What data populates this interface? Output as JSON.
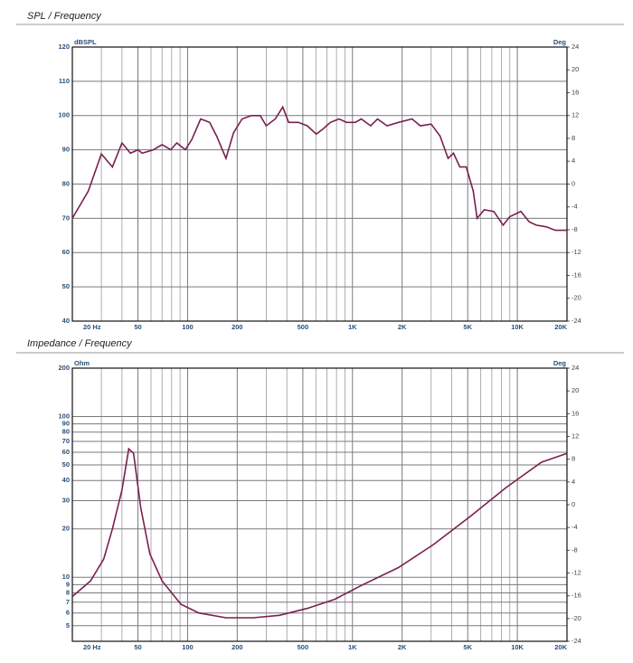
{
  "chart_data": [
    {
      "type": "line",
      "title": "SPL / Frequency",
      "ylabel": "dBSPL",
      "y2label": "Deg",
      "xscale": "log",
      "yscale": "linear",
      "grid": true,
      "color": "#7a1f4f",
      "xlim": [
        20,
        20000
      ],
      "xticks": [
        {
          "value": 20,
          "label": "20 Hz"
        },
        50,
        100,
        200,
        500,
        {
          "value": 1000,
          "label": "1K"
        },
        {
          "value": 2000,
          "label": "2K"
        },
        {
          "value": 5000,
          "label": "5K"
        },
        {
          "value": 10000,
          "label": "10K"
        },
        {
          "value": 20000,
          "label": "20K"
        }
      ],
      "xgrid": [
        30,
        40,
        60,
        70,
        80,
        90,
        300,
        400,
        600,
        700,
        800,
        900,
        3000,
        4000,
        6000,
        7000,
        8000,
        9000
      ],
      "ylim": [
        40,
        120
      ],
      "yticks": [
        40,
        50,
        60,
        70,
        80,
        90,
        100,
        110,
        120
      ],
      "y2lim": [
        -24,
        24
      ],
      "y2ticks": [
        -24,
        -20,
        -16,
        -12,
        -8,
        -4,
        0,
        4,
        8,
        12,
        16,
        20,
        24
      ],
      "x": [
        20,
        25,
        30,
        35,
        40,
        45,
        50,
        53,
        62,
        70,
        79,
        86,
        97,
        106,
        120,
        136,
        150,
        171,
        190,
        214,
        244,
        276,
        300,
        340,
        378,
        410,
        470,
        532,
        603,
        660,
        735,
        830,
        920,
        1040,
        1130,
        1290,
        1420,
        1620,
        1900,
        2300,
        2580,
        3000,
        3400,
        3800,
        4100,
        4480,
        4900,
        5400,
        5700,
        6300,
        7200,
        8200,
        9000,
        10500,
        11800,
        13000,
        15000,
        17000,
        20000
      ],
      "values": [
        70,
        78,
        88.8,
        85,
        92,
        89,
        90,
        89,
        90,
        91.5,
        90,
        92,
        90,
        93,
        99,
        98,
        94,
        87.5,
        95,
        99,
        100,
        100,
        97,
        99,
        102.5,
        98,
        98,
        97,
        94.6,
        96,
        98,
        99,
        98,
        98,
        99,
        97,
        99,
        97,
        98,
        99,
        97,
        97.5,
        94,
        87.5,
        89,
        85,
        85,
        78,
        70,
        72.5,
        72,
        68,
        70.5,
        72,
        69,
        68,
        67.5,
        66.5,
        66.5
      ]
    },
    {
      "type": "line",
      "title": "Impedance / Frequency",
      "ylabel": "Ohm",
      "y2label": "Deg",
      "xscale": "log",
      "yscale": "log",
      "grid": true,
      "color": "#7a1f4f",
      "xlim": [
        20,
        20000
      ],
      "xticks": [
        {
          "value": 20,
          "label": "20 Hz"
        },
        50,
        100,
        200,
        500,
        {
          "value": 1000,
          "label": "1K"
        },
        {
          "value": 2000,
          "label": "2K"
        },
        {
          "value": 5000,
          "label": "5K"
        },
        {
          "value": 10000,
          "label": "10K"
        },
        {
          "value": 20000,
          "label": "20K"
        }
      ],
      "xgrid": [
        30,
        40,
        60,
        70,
        80,
        90,
        300,
        400,
        600,
        700,
        800,
        900,
        3000,
        4000,
        6000,
        7000,
        8000,
        9000
      ],
      "ylim": [
        4,
        200
      ],
      "yticks": [
        5,
        6,
        7,
        8,
        9,
        10,
        20,
        30,
        40,
        50,
        60,
        70,
        80,
        90,
        100,
        200
      ],
      "y2lim": [
        -24,
        24
      ],
      "y2ticks": [
        -24,
        -20,
        -16,
        -12,
        -8,
        -4,
        0,
        4,
        8,
        12,
        16,
        20,
        24
      ],
      "x": [
        20,
        25.8,
        31,
        35,
        40,
        44,
        47,
        52,
        59,
        70,
        91,
        117,
        171,
        250,
        360,
        530,
        780,
        1130,
        1900,
        3100,
        5200,
        8500,
        14000,
        20000
      ],
      "values": [
        7.6,
        9.5,
        13,
        20,
        35,
        63,
        59,
        27,
        14,
        9.5,
        6.8,
        6.0,
        5.6,
        5.6,
        5.8,
        6.4,
        7.3,
        8.9,
        11.5,
        16,
        24,
        36,
        52,
        59
      ]
    }
  ]
}
